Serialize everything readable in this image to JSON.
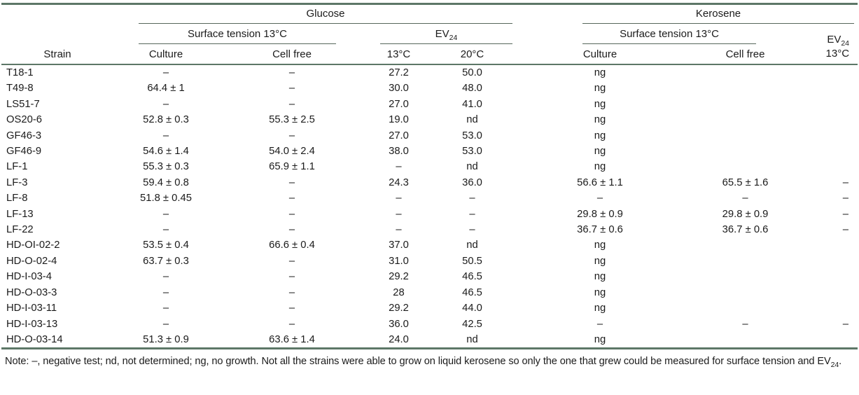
{
  "colors": {
    "rule_thick": "#5d7767",
    "rule_thin": "#56675b",
    "text": "#1b1b1b",
    "background": "#ffffff"
  },
  "table": {
    "groups": {
      "glucose": "Glucose",
      "kerosene": "Kerosene"
    },
    "subgroups": {
      "surface_tension_glucose": "Surface tension 13°C",
      "ev_glucose_base": "EV",
      "ev_glucose_sub": "24",
      "surface_tension_kerosene": "Surface tension 13°C",
      "ev_kerosene_base": "EV",
      "ev_kerosene_sub": "24",
      "ev_kerosene_temp": "13°C"
    },
    "column_headers": {
      "strain": "Strain",
      "glucose_culture": "Culture",
      "glucose_cell_free": "Cell free",
      "ev_13c": "13°C",
      "ev_20c": "20°C",
      "kerosene_culture": "Culture",
      "kerosene_cell_free": "Cell free"
    },
    "col_keys": [
      "strain",
      "glucose-culture",
      "glucose-cell-free",
      "glucose-ev-13c",
      "glucose-ev-20c",
      "kerosene-culture",
      "kerosene-cell-free",
      "kerosene-ev-13c"
    ],
    "rows": [
      [
        "T18-1",
        "–",
        "–",
        "27.2",
        "50.0",
        "ng",
        "",
        ""
      ],
      [
        "T49-8",
        "64.4 ± 1",
        "–",
        "30.0",
        "48.0",
        "ng",
        "",
        ""
      ],
      [
        "LS51-7",
        "–",
        "–",
        "27.0",
        "41.0",
        "ng",
        "",
        ""
      ],
      [
        "OS20-6",
        "52.8 ± 0.3",
        "55.3 ± 2.5",
        "19.0",
        "nd",
        "ng",
        "",
        ""
      ],
      [
        "GF46-3",
        "–",
        "–",
        "27.0",
        "53.0",
        "ng",
        "",
        ""
      ],
      [
        "GF46-9",
        "54.6 ± 1.4",
        "54.0 ± 2.4",
        "38.0",
        "53.0",
        "ng",
        "",
        ""
      ],
      [
        "LF-1",
        "55.3 ± 0.3",
        "65.9 ± 1.1",
        "–",
        "nd",
        "ng",
        "",
        ""
      ],
      [
        "LF-3",
        "59.4 ± 0.8",
        "–",
        "24.3",
        "36.0",
        "56.6 ± 1.1",
        "65.5 ± 1.6",
        "–"
      ],
      [
        "LF-8",
        "51.8 ± 0.45",
        "–",
        "–",
        "–",
        "–",
        "–",
        "–"
      ],
      [
        "LF-13",
        "–",
        "–",
        "–",
        "–",
        "29.8 ± 0.9",
        "29.8 ± 0.9",
        "–"
      ],
      [
        "LF-22",
        "–",
        "–",
        "–",
        "–",
        "36.7 ± 0.6",
        "36.7 ± 0.6",
        "–"
      ],
      [
        "HD-OI-02-2",
        "53.5 ± 0.4",
        "66.6 ± 0.4",
        "37.0",
        "nd",
        "ng",
        "",
        ""
      ],
      [
        "HD-O-02-4",
        "63.7 ± 0.3",
        "–",
        "31.0",
        "50.5",
        "ng",
        "",
        ""
      ],
      [
        "HD-I-03-4",
        "–",
        "–",
        "29.2",
        "46.5",
        "ng",
        "",
        ""
      ],
      [
        "HD-O-03-3",
        "–",
        "–",
        "28",
        "46.5",
        "ng",
        "",
        ""
      ],
      [
        "HD-I-03-11",
        "–",
        "–",
        "29.2",
        "44.0",
        "ng",
        "",
        ""
      ],
      [
        "HD-I-03-13",
        "–",
        "–",
        "36.0",
        "42.5",
        "–",
        "–",
        "–"
      ],
      [
        "HD-O-03-14",
        "51.3 ± 0.9",
        "63.6 ± 1.4",
        "24.0",
        "nd",
        "ng",
        "",
        ""
      ]
    ]
  },
  "note": {
    "text": "Note: –, negative test; nd, not determined; ng, no growth. Not all the strains were able to grow on liquid kerosene so only the one that grew could be measured for surface tension and EV",
    "sub": "24",
    "suffix": "."
  }
}
